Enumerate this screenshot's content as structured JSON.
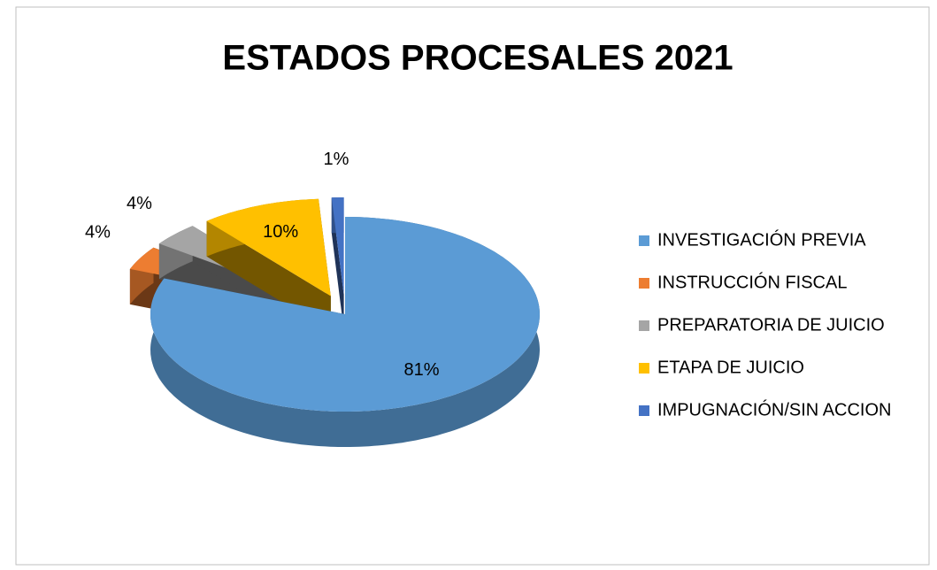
{
  "chart_data": {
    "type": "pie3d",
    "title": "ESTADOS PROCESALES 2021",
    "categories": [
      "INVESTIGACIÓN PREVIA",
      "INSTRUCCIÓN FISCAL",
      "PREPARATORIA DE JUICIO",
      "ETAPA DE JUICIO",
      "IMPUGNACIÓN/SIN ACCION"
    ],
    "values": [
      81,
      4,
      4,
      10,
      1
    ],
    "value_labels": [
      "81%",
      "4%",
      "4%",
      "10%",
      "1%"
    ],
    "colors": [
      "#5b9bd5",
      "#ed7d31",
      "#a5a5a5",
      "#ffc000",
      "#4472c4"
    ],
    "legend": "right"
  }
}
